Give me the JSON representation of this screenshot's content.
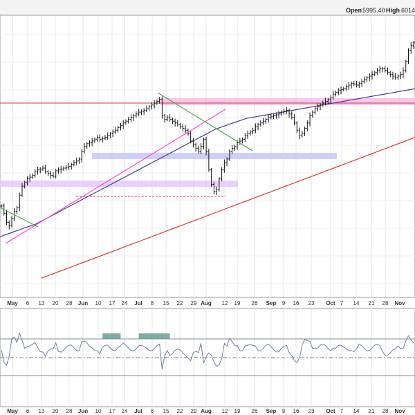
{
  "header": {
    "open_label": "Open",
    "open_value": "5995.40",
    "high_label": "High",
    "high_value": "6014."
  },
  "chart_data": {
    "type": "ohlc",
    "grid": true,
    "x_tick_labels": [
      {
        "label": "May",
        "major": true
      },
      {
        "label": "6"
      },
      {
        "label": "13"
      },
      {
        "label": "20"
      },
      {
        "label": "28"
      },
      {
        "label": "Jun",
        "major": true
      },
      {
        "label": "10"
      },
      {
        "label": "17"
      },
      {
        "label": "24"
      },
      {
        "label": "Jul",
        "major": true
      },
      {
        "label": "8"
      },
      {
        "label": "15"
      },
      {
        "label": "22"
      },
      {
        "label": "29"
      },
      {
        "label": "Aug",
        "major": true
      },
      {
        "label": "12"
      },
      {
        "label": "19"
      },
      {
        "label": "26"
      },
      {
        "label": "Sep",
        "major": true
      },
      {
        "label": "9"
      },
      {
        "label": "16"
      },
      {
        "label": "23"
      },
      {
        "label": "Oct",
        "major": true
      },
      {
        "label": "7"
      },
      {
        "label": "14"
      },
      {
        "label": "21"
      },
      {
        "label": "28"
      },
      {
        "label": "Nov",
        "major": true
      }
    ],
    "series": [
      {
        "values": [
          5100,
          5060,
          5010,
          4990,
          5030,
          5070,
          5090,
          5160,
          5210,
          5230,
          5250,
          5260,
          5270,
          5290,
          5300,
          5305,
          5310,
          5290,
          5280,
          5270,
          5265,
          5295,
          5300,
          5305,
          5310,
          5315,
          5320,
          5330,
          5340,
          5350,
          5360,
          5400,
          5430,
          5445,
          5450,
          5460,
          5470,
          5480,
          5470,
          5475,
          5480,
          5490,
          5500,
          5510,
          5520,
          5535,
          5545,
          5560,
          5570,
          5580,
          5590,
          5600,
          5610,
          5620,
          5625,
          5630,
          5640,
          5650,
          5660,
          5670,
          5680,
          5690,
          5600,
          5580,
          5590,
          5580,
          5570,
          5560,
          5550,
          5540,
          5530,
          5520,
          5500,
          5460,
          5440,
          5420,
          5400,
          5430,
          5470,
          5400,
          5300,
          5220,
          5180,
          5190,
          5250,
          5300,
          5340,
          5360,
          5400,
          5420,
          5430,
          5450,
          5460,
          5470,
          5490,
          5500,
          5510,
          5520,
          5540,
          5550,
          5560,
          5570,
          5580,
          5590,
          5595,
          5600,
          5605,
          5610,
          5620,
          5625,
          5630,
          5610,
          5590,
          5560,
          5520,
          5490,
          5500,
          5530,
          5560,
          5600,
          5620,
          5640,
          5650,
          5660,
          5670,
          5680,
          5690,
          5700,
          5720,
          5730,
          5740,
          5745,
          5750,
          5760,
          5770,
          5780,
          5775,
          5770,
          5780,
          5790,
          5800,
          5810,
          5820,
          5830,
          5840,
          5850,
          5860,
          5860,
          5850,
          5840,
          5830,
          5820,
          5810,
          5820,
          5830,
          5850,
          5900,
          5960,
          5990,
          6005
        ]
      },
      {
        "values": [
          4930,
          4940,
          4950,
          4960,
          4970,
          4980,
          4990,
          5000,
          5015,
          5030,
          5045,
          5060,
          5075,
          5090,
          5105,
          5120,
          5135,
          5150,
          5165,
          5180,
          5195,
          5210,
          5225,
          5240,
          5255,
          5270,
          5285,
          5300,
          5315,
          5330,
          5345,
          5360,
          5375,
          5390,
          5405,
          5420,
          5435,
          5450,
          5465,
          5480,
          5495,
          5510,
          5525,
          5535,
          5545,
          5555,
          5565,
          5575,
          5585,
          5590,
          5595,
          5600,
          5605,
          5610,
          5615,
          5620,
          5625,
          5630,
          5635,
          5640,
          5645,
          5650,
          5655,
          5660,
          5665,
          5670,
          5675,
          5680,
          5685,
          5690,
          5695,
          5700,
          5705,
          5710,
          5715,
          5720,
          5725,
          5730,
          5735,
          5740,
          5745,
          5750
        ]
      },
      {
        "values": [
          4700,
          4720,
          4740,
          4760,
          4780,
          4800,
          4820,
          4840,
          4860,
          4880,
          4900,
          4920,
          4940,
          4960,
          4980,
          5000,
          5020,
          5040,
          5060,
          5080,
          5100,
          5120,
          5140,
          5160,
          5180,
          5200,
          5220,
          5240,
          5260,
          5280,
          5300,
          5320,
          5340,
          5360,
          5380,
          5400,
          5420,
          5440,
          5460,
          5480
        ]
      }
    ],
    "indicator_panel": {
      "reference_lines": [
        "upper",
        "middle",
        "lower"
      ]
    }
  }
}
